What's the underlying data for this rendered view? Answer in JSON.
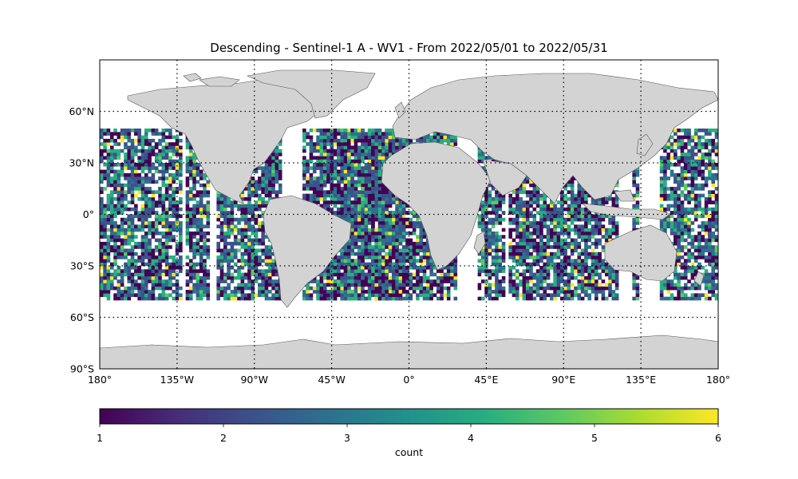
{
  "title": "Descending - Sentinel-1 A - WV1 - From 2022/05/01 to 2022/05/31",
  "map": {
    "projection": "equirectangular",
    "lon_range": [
      -180,
      180
    ],
    "lat_range": [
      -90,
      90
    ],
    "land_color": "#d3d3d3",
    "coastline_color": "#555555",
    "gridlines": "dotted",
    "x_ticks": [
      {
        "value": -180,
        "label": "180°"
      },
      {
        "value": -135,
        "label": "135°W"
      },
      {
        "value": -90,
        "label": "90°W"
      },
      {
        "value": -45,
        "label": "45°W"
      },
      {
        "value": 0,
        "label": "0°"
      },
      {
        "value": 45,
        "label": "45°E"
      },
      {
        "value": 90,
        "label": "90°E"
      },
      {
        "value": 135,
        "label": "135°E"
      },
      {
        "value": 180,
        "label": "180°"
      }
    ],
    "y_ticks": [
      {
        "value": 60,
        "label": "60°N"
      },
      {
        "value": 30,
        "label": "30°N"
      },
      {
        "value": 0,
        "label": "0°"
      },
      {
        "value": -30,
        "label": "30°S"
      },
      {
        "value": -60,
        "label": "60°S"
      },
      {
        "value": -90,
        "label": "90°S"
      }
    ]
  },
  "chart_data": {
    "type": "heatmap",
    "value_name": "count",
    "grid_cell_deg": 2,
    "coverage_lat_range": [
      -50,
      50
    ],
    "swath_bands_lon": [
      [
        -180,
        -133
      ],
      [
        -130,
        -116
      ],
      [
        -112,
        -75
      ],
      [
        -62,
        -34
      ],
      [
        -38,
        -2
      ],
      [
        -52,
        28
      ],
      [
        40,
        56
      ],
      [
        58,
        122
      ],
      [
        130,
        134
      ],
      [
        146,
        180
      ]
    ],
    "colorscale": "viridis",
    "vmin": 1,
    "vmax": 6
  },
  "colorbar": {
    "label": "count",
    "ticks": [
      "1",
      "2",
      "3",
      "4",
      "5",
      "6"
    ],
    "tick_values": [
      1,
      2,
      3,
      4,
      5,
      6
    ]
  }
}
